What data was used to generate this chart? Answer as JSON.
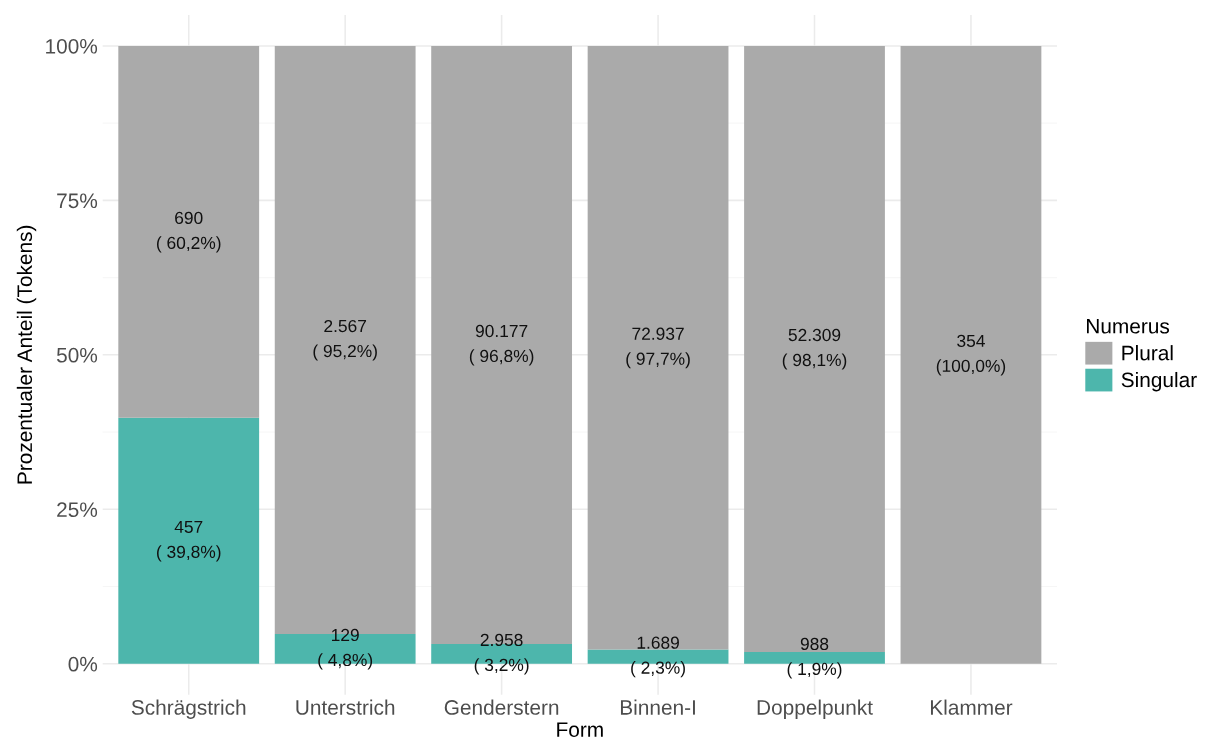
{
  "chart_data": {
    "type": "bar",
    "stacked": true,
    "xlabel": "Form",
    "ylabel": "Prozentualer Anteil (Tokens)",
    "legend_title": "Numerus",
    "categories": [
      "Schrägstrich",
      "Unterstrich",
      "Genderstern",
      "Binnen-I",
      "Doppelpunkt",
      "Klammer"
    ],
    "series": [
      {
        "name": "Singular",
        "color": "#4db6ac",
        "values": [
          39.8,
          4.8,
          3.2,
          2.3,
          1.9,
          0
        ],
        "value_labels": [
          "457\n( 39,8%)",
          "129\n( 4,8%)",
          "2.958\n( 3,2%)",
          "1.689\n( 2,3%)",
          "988\n( 1,9%)",
          null
        ]
      },
      {
        "name": "Plural",
        "color": "#aaaaaa",
        "values": [
          60.2,
          95.2,
          96.8,
          97.7,
          98.1,
          100
        ],
        "value_labels": [
          "690\n( 60,2%)",
          "2.567\n( 95,2%)",
          "90.177\n( 96,8%)",
          "72.937\n( 97,7%)",
          "52.309\n( 98,1%)",
          "354\n(100,0%)"
        ]
      }
    ],
    "ylim": [
      -5,
      105
    ],
    "yticks": [
      {
        "value": 0,
        "label": "0%"
      },
      {
        "value": 25,
        "label": "25%"
      },
      {
        "value": 50,
        "label": "50%"
      },
      {
        "value": 75,
        "label": "75%"
      },
      {
        "value": 100,
        "label": "100%"
      }
    ],
    "grid": true,
    "legend": "right"
  }
}
